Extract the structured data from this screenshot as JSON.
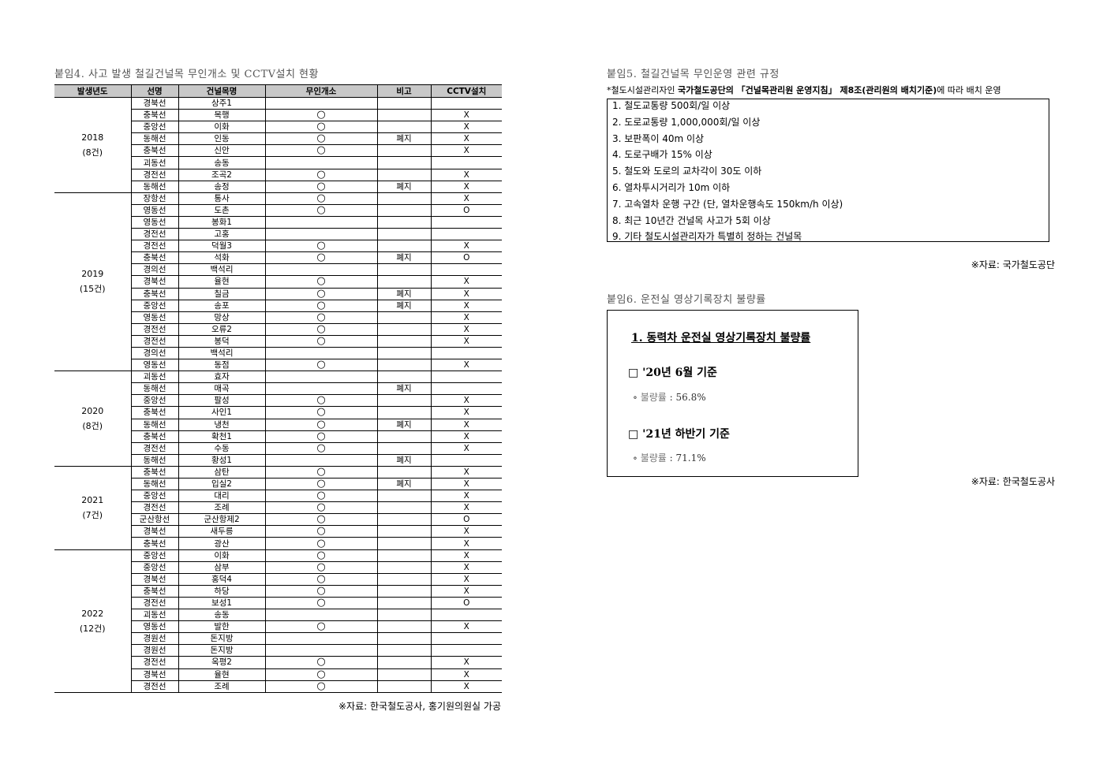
{
  "attachment4": {
    "title": "붙임4. 사고 발생 철길건널목 무인개소 및 CCTV설치 현황",
    "headers": [
      "발생년도",
      "선명",
      "건널목명",
      "무인개소",
      "비고",
      "CCTV설치"
    ],
    "groups": [
      {
        "year": "2018",
        "count": "(8건)",
        "rows": [
          [
            "경북선",
            "상주1",
            "",
            "",
            ""
          ],
          [
            "충북선",
            "목행",
            "○",
            "",
            "X"
          ],
          [
            "중앙선",
            "이화",
            "○",
            "",
            "X"
          ],
          [
            "동해선",
            "인동",
            "○",
            "폐지",
            "X"
          ],
          [
            "충북선",
            "신안",
            "○",
            "",
            "X"
          ],
          [
            "괴동선",
            "송동",
            "",
            "",
            ""
          ],
          [
            "경전선",
            "조곡2",
            "○",
            "",
            "X"
          ],
          [
            "동해선",
            "송정",
            "○",
            "폐지",
            "X"
          ]
        ]
      },
      {
        "year": "2019",
        "count": "(15건)",
        "rows": [
          [
            "장항선",
            "통사",
            "○",
            "",
            "X"
          ],
          [
            "영동선",
            "도촌",
            "○",
            "",
            "O"
          ],
          [
            "영동선",
            "봉화1",
            "",
            "",
            ""
          ],
          [
            "경전선",
            "고홍",
            "",
            "",
            ""
          ],
          [
            "경전선",
            "덕월3",
            "○",
            "",
            "X"
          ],
          [
            "충북선",
            "석화",
            "○",
            "폐지",
            "O"
          ],
          [
            "경의선",
            "백석리",
            "",
            "",
            ""
          ],
          [
            "경북선",
            "율현",
            "○",
            "",
            "X"
          ],
          [
            "충북선",
            "칠금",
            "○",
            "폐지",
            "X"
          ],
          [
            "중앙선",
            "송포",
            "○",
            "폐지",
            "X"
          ],
          [
            "영동선",
            "망상",
            "○",
            "",
            "X"
          ],
          [
            "경전선",
            "오류2",
            "○",
            "",
            "X"
          ],
          [
            "경전선",
            "봉덕",
            "○",
            "",
            "X"
          ],
          [
            "경의선",
            "백석리",
            "",
            "",
            ""
          ],
          [
            "영동선",
            "동점",
            "○",
            "",
            "X"
          ]
        ]
      },
      {
        "year": "2020",
        "count": "(8건)",
        "rows": [
          [
            "괴동선",
            "효자",
            "",
            "",
            ""
          ],
          [
            "동해선",
            "매곡",
            "",
            "폐지",
            ""
          ],
          [
            "중앙선",
            "팔성",
            "○",
            "",
            "X"
          ],
          [
            "충북선",
            "사인1",
            "○",
            "",
            "X"
          ],
          [
            "동해선",
            "냉천",
            "○",
            "폐지",
            "X"
          ],
          [
            "충북선",
            "확천1",
            "○",
            "",
            "X"
          ],
          [
            "경전선",
            "수동",
            "○",
            "",
            "X"
          ],
          [
            "동해선",
            "황성1",
            "",
            "폐지",
            ""
          ]
        ]
      },
      {
        "year": "2021",
        "count": "(7건)",
        "rows": [
          [
            "충북선",
            "삼탄",
            "○",
            "",
            "X"
          ],
          [
            "동해선",
            "입실2",
            "○",
            "폐지",
            "X"
          ],
          [
            "중앙선",
            "대리",
            "○",
            "",
            "X"
          ],
          [
            "경전선",
            "조례",
            "○",
            "",
            "X"
          ],
          [
            "군산항선",
            "군산항제2",
            "○",
            "",
            "O"
          ],
          [
            "경북선",
            "새두릉",
            "○",
            "",
            "X"
          ],
          [
            "충북선",
            "광산",
            "○",
            "",
            "X"
          ]
        ]
      },
      {
        "year": "2022",
        "count": "(12건)",
        "rows": [
          [
            "중앙선",
            "이화",
            "○",
            "",
            "X"
          ],
          [
            "중앙선",
            "삼부",
            "○",
            "",
            "X"
          ],
          [
            "경북선",
            "홍덕4",
            "○",
            "",
            "X"
          ],
          [
            "충북선",
            "하당",
            "○",
            "",
            "X"
          ],
          [
            "경전선",
            "보성1",
            "○",
            "",
            "O"
          ],
          [
            "괴동선",
            "송동",
            "",
            "",
            ""
          ],
          [
            "영동선",
            "발한",
            "○",
            "",
            "X"
          ],
          [
            "경원선",
            "돈지방",
            "",
            "",
            ""
          ],
          [
            "경원선",
            "돈지방",
            "",
            "",
            ""
          ],
          [
            "경전선",
            "옥평2",
            "○",
            "",
            "X"
          ],
          [
            "경북선",
            "율현",
            "○",
            "",
            "X"
          ],
          [
            "경전선",
            "조례",
            "○",
            "",
            "X"
          ]
        ]
      }
    ],
    "source": "※자료: 한국철도공사, 홍기원의원실 가공"
  },
  "attachment5": {
    "title": "붙임5. 철길건널목 무인운영 관련 규정",
    "note_prefix": "*철도시설관리자인 ",
    "note_bold": "국가철도공단의 「건널목관리원 운영지침」 제8조(관리원의 배치기준)",
    "note_suffix": "에 따라 배치 운영",
    "items": [
      "1. 철도교통량 500회/일 이상",
      "2. 도로교통량 1,000,000회/일 이상",
      "3. 보판폭이 40m 이상",
      "4. 도로구배가 15% 이상",
      "5. 철도와 도로의 교차각이 30도 이하",
      "6. 열차투시거리가 10m 이하",
      "7. 고속열차 운행 구간 (단, 열차운행속도 150km/h 이상)",
      "8. 최근 10년간 건널목 사고가 5회 이상",
      "9. 기타 철도시설관리자가 특별히 정하는 건널목"
    ],
    "source": "※자료: 국가철도공단"
  },
  "attachment6": {
    "title": "붙임6. 운전실 영상기록장치 불량률",
    "heading": "1. 동력차 운전실 영상기록장치 불량률",
    "sections": [
      {
        "label": "□ '20년 6월 기준",
        "bullet": "∘",
        "value_label": "불량률",
        "value": ": 56.8%"
      },
      {
        "label": "□ '21년 하반기 기준",
        "bullet": "∘",
        "value_label": "불량률",
        "value": ": 71.1%"
      }
    ],
    "source": "※자료: 한국철도공사"
  }
}
